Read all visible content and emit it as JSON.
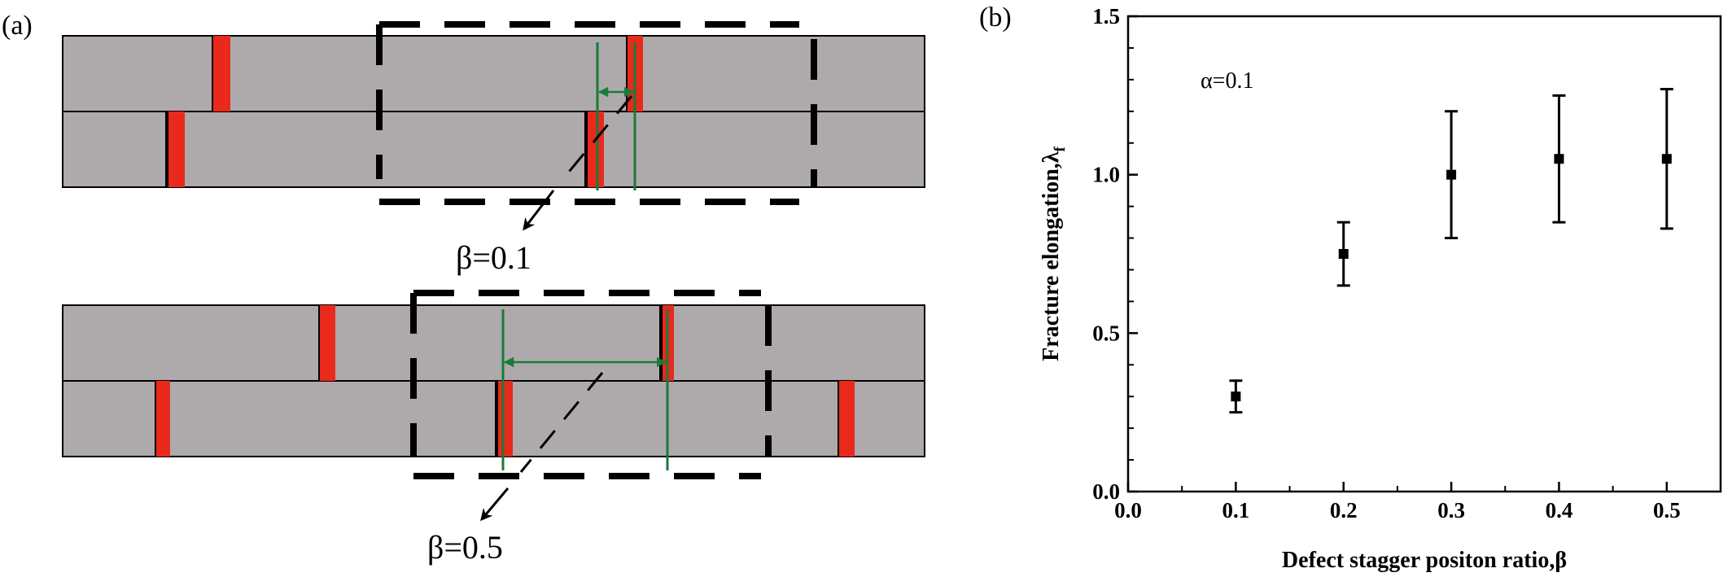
{
  "panel_a": {
    "label": "(a)",
    "beta_labels": [
      "β=0.1",
      "β=0.5"
    ]
  },
  "panel_b": {
    "label": "(b)",
    "annotation": "α=0.1"
  },
  "colors": {
    "fiber": "#aeaaab",
    "defect": "#e8291c",
    "marker": "#1a7a3a",
    "outline": "#000000"
  },
  "chart_data": {
    "type": "scatter",
    "title": "",
    "xlabel": "Defect stagger positon ratio,β",
    "ylabel": "Fracture elongation,λf",
    "ylabel_main": "Fracture elongation,λ",
    "ylabel_sub": "f",
    "xlim": [
      0.0,
      0.55
    ],
    "ylim": [
      0.0,
      1.5
    ],
    "xticks": [
      0.0,
      0.1,
      0.2,
      0.3,
      0.4,
      0.5
    ],
    "yticks": [
      0.0,
      0.5,
      1.0,
      1.5
    ],
    "xtick_labels": [
      "0.0",
      "0.1",
      "0.2",
      "0.3",
      "0.4",
      "0.5"
    ],
    "ytick_labels": [
      "0.0",
      "0.5",
      "1.0",
      "1.5"
    ],
    "grid": false,
    "series": [
      {
        "x": [
          0.1,
          0.2,
          0.3,
          0.4,
          0.5
        ],
        "y": [
          0.3,
          0.75,
          1.0,
          1.05,
          1.05
        ],
        "err_low": [
          0.25,
          0.65,
          0.8,
          0.85,
          0.83
        ],
        "err_high": [
          0.35,
          0.85,
          1.2,
          1.25,
          1.27
        ]
      }
    ]
  }
}
